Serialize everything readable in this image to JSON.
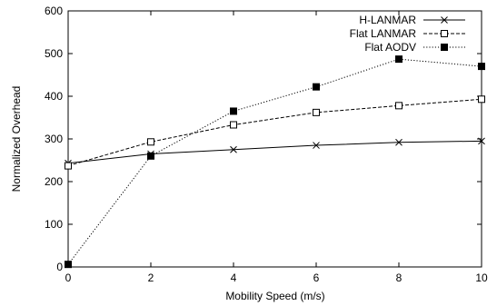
{
  "chart_data": {
    "type": "line",
    "xlabel": "Mobility Speed (m/s)",
    "ylabel": "Normalized Overhead",
    "xlim": [
      0,
      10
    ],
    "ylim": [
      0,
      600
    ],
    "x_ticks": [
      "0",
      "2",
      "4",
      "6",
      "8",
      "10"
    ],
    "y_ticks": [
      "0",
      "100",
      "200",
      "300",
      "400",
      "500",
      "600"
    ],
    "grid": false,
    "legend_position": "top-right",
    "series": [
      {
        "name": "H-LANMAR",
        "line_style": "solid",
        "marker": "cross",
        "x": [
          0,
          2,
          4,
          6,
          8,
          10
        ],
        "values": [
          243,
          265,
          275,
          285,
          292,
          295
        ]
      },
      {
        "name": "Flat LANMAR",
        "line_style": "dashed",
        "marker": "open-square",
        "x": [
          0,
          2,
          4,
          6,
          8,
          10
        ],
        "values": [
          237,
          293,
          333,
          362,
          378,
          393
        ]
      },
      {
        "name": "Flat AODV",
        "line_style": "dotted",
        "marker": "filled-square",
        "x": [
          0,
          2,
          4,
          6,
          8,
          10
        ],
        "values": [
          6,
          260,
          365,
          422,
          487,
          470
        ]
      }
    ]
  }
}
